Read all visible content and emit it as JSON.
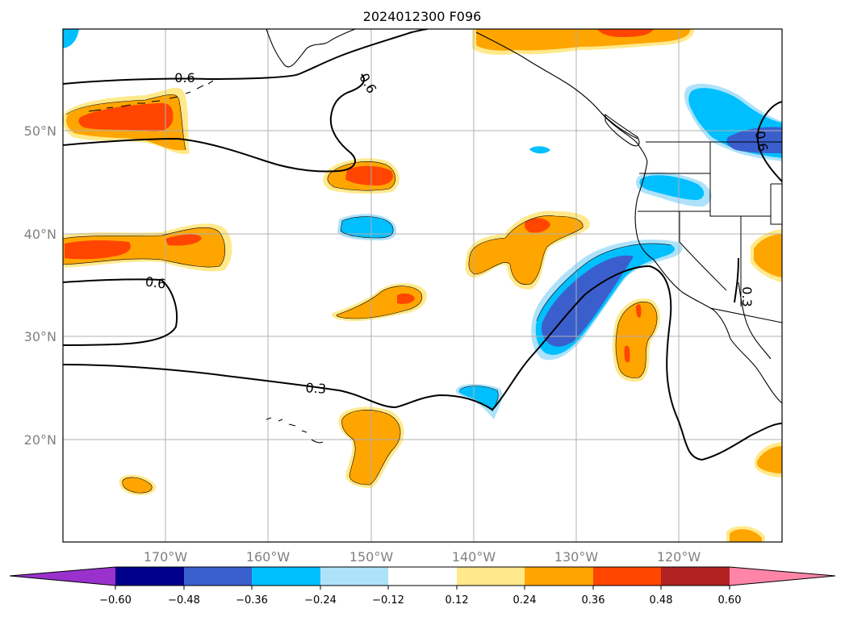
{
  "map": {
    "title": "2024012300 F096",
    "lat_labels": [
      "50°N",
      "40°N",
      "30°N",
      "20°N"
    ],
    "lon_labels": [
      "170°W",
      "160°W",
      "150°W",
      "140°W",
      "130°W",
      "120°W"
    ],
    "contour_labels": [
      "0.6",
      "0.6",
      "0.6",
      "0.6",
      "0.3",
      "0.3"
    ]
  },
  "colorbar": {
    "tick_labels": [
      "−0.60",
      "−0.48",
      "−0.36",
      "−0.24",
      "−0.12",
      "0.12",
      "0.24",
      "0.36",
      "0.48",
      "0.60"
    ],
    "colors": [
      "#9932cc",
      "#00008b",
      "#3a5fcd",
      "#00bfff",
      "#aee2fa",
      "#ffffff",
      "#ffe98b",
      "#ffa500",
      "#ff4500",
      "#b22222",
      "#ff85a8"
    ]
  }
}
